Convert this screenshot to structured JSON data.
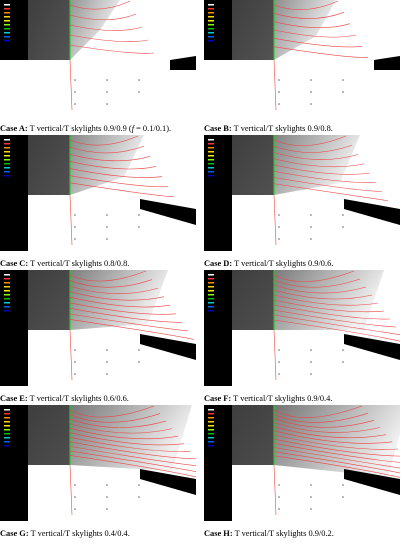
{
  "panels": [
    {
      "label": "Case A:",
      "text": "T vertical/T skylights 0.9/0.9 (",
      "italic": "f",
      "tail": " = 0.1/0.1)."
    },
    {
      "label": "Case B:",
      "text": "T vertical/T skylights 0.9/0.8."
    },
    {
      "label": "Case C:",
      "text": "T vertical/T skylights 0.8/0.8."
    },
    {
      "label": "Case D:",
      "text": "T vertical/T skylights 0.9/0.6."
    },
    {
      "label": "Case E:",
      "text": "T vertical/T skylights 0.6/0.6."
    },
    {
      "label": "Case F:",
      "text": "T vertical/T skylights 0.9/0.4."
    },
    {
      "label": "Case G:",
      "text": "T vertical/T skylights 0.4/0.4."
    },
    {
      "label": "Case H:",
      "text": "T vertical/T skylights 0.9/0.2."
    }
  ]
}
